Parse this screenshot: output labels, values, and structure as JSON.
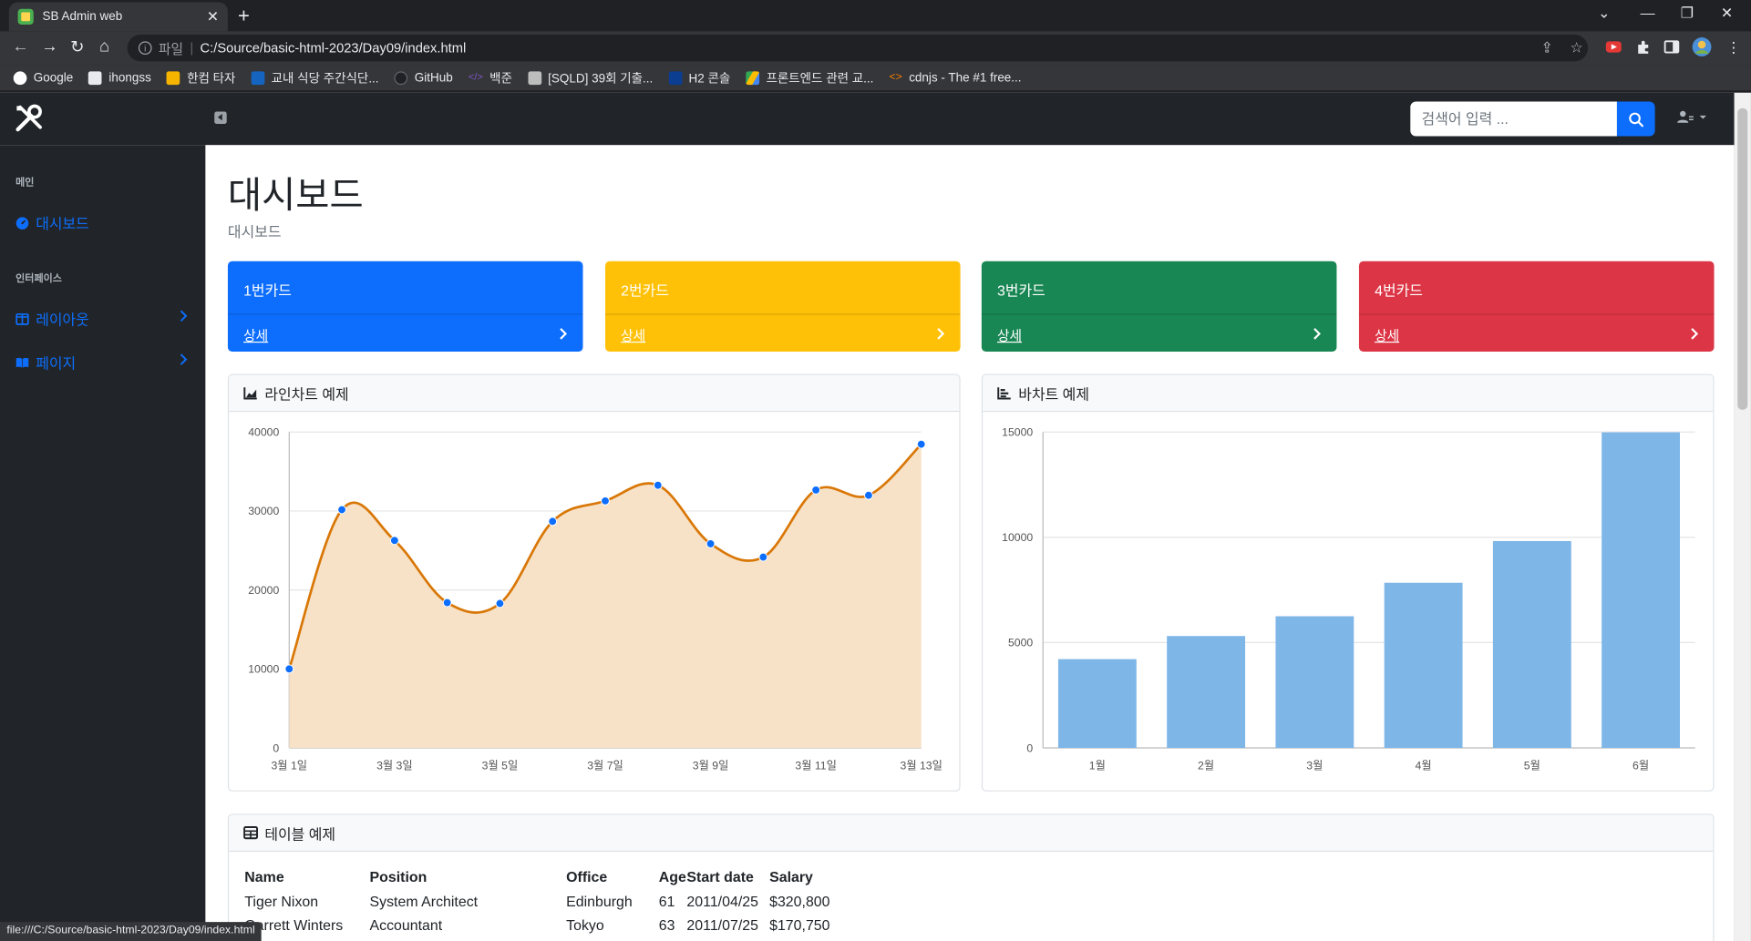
{
  "browser": {
    "tab_title": "SB Admin web",
    "tab_close": "✕",
    "new_tab": "+",
    "url_scheme": "파일",
    "url_sep": "|",
    "url": "C:/Source/basic-html-2023/Day09/index.html",
    "bookmarks": [
      "Google",
      "ihongss",
      "한컴 타자",
      "교내 식당 주간식단...",
      "GitHub",
      "백준",
      "[SQLD] 39회 기출...",
      "H2 콘솔",
      "프론트엔드 관련 교...",
      "cdnjs - The #1 free..."
    ],
    "status_url": "file:///C:/Source/basic-html-2023/Day09/index.html"
  },
  "topnav": {
    "search_placeholder": "검색어 입력 ..."
  },
  "sidebar": {
    "heading_main": "메인",
    "dashboard": "대시보드",
    "heading_interface": "인터페이스",
    "layout": "레이아웃",
    "pages": "페이지"
  },
  "main": {
    "title": "대시보드",
    "breadcrumb": "대시보드",
    "cards": [
      {
        "title": "1번카드",
        "link": "상세",
        "color": "#0d6efd"
      },
      {
        "title": "2번카드",
        "link": "상세",
        "color": "#ffc107"
      },
      {
        "title": "3번카드",
        "link": "상세",
        "color": "#198754"
      },
      {
        "title": "4번카드",
        "link": "상세",
        "color": "#dc3545"
      }
    ],
    "line_panel_title": "라인차트 예제",
    "bar_panel_title": "바차트 예제",
    "table_panel_title": "테이블 예제"
  },
  "chart_data": [
    {
      "type": "area",
      "title": "라인차트 예제",
      "x": [
        "3월 1일",
        "3월 2일",
        "3월 3일",
        "3월 4일",
        "3월 5일",
        "3월 6일",
        "3월 7일",
        "3월 8일",
        "3월 9일",
        "3월 10일",
        "3월 11일",
        "3월 12일",
        "3월 13일"
      ],
      "x_tick_labels": [
        "3월 1일",
        "3월 3일",
        "3월 5일",
        "3월 7일",
        "3월 9일",
        "3월 11일",
        "3월 13일"
      ],
      "values": [
        10000,
        30162,
        26263,
        18394,
        18287,
        28682,
        31274,
        33259,
        25849,
        24159,
        32651,
        31984,
        38451
      ],
      "ylim": [
        0,
        40000
      ],
      "y_ticks": [
        "0",
        "10000",
        "20000",
        "30000",
        "40000"
      ],
      "line_color": "#d97706",
      "fill_color": "#f7e2c8",
      "point_color": "#0d6efd",
      "grid": true
    },
    {
      "type": "bar",
      "title": "바차트 예제",
      "categories": [
        "1월",
        "2월",
        "3월",
        "4월",
        "5월",
        "6월"
      ],
      "values": [
        4215,
        5312,
        6251,
        7841,
        9821,
        14984
      ],
      "ylim": [
        0,
        15000
      ],
      "y_ticks": [
        "0",
        "5000",
        "10000",
        "15000"
      ],
      "bar_color": "#7fb6e8",
      "grid": true
    }
  ],
  "table": {
    "headers": [
      "Name",
      "Position",
      "Office",
      "Age",
      "Start date",
      "Salary"
    ],
    "rows": [
      [
        "Tiger Nixon",
        "System Architect",
        "Edinburgh",
        "61",
        "2011/04/25",
        "$320,800"
      ],
      [
        "Garrett Winters",
        "Accountant",
        "Tokyo",
        "63",
        "2011/07/25",
        "$170,750"
      ]
    ]
  }
}
